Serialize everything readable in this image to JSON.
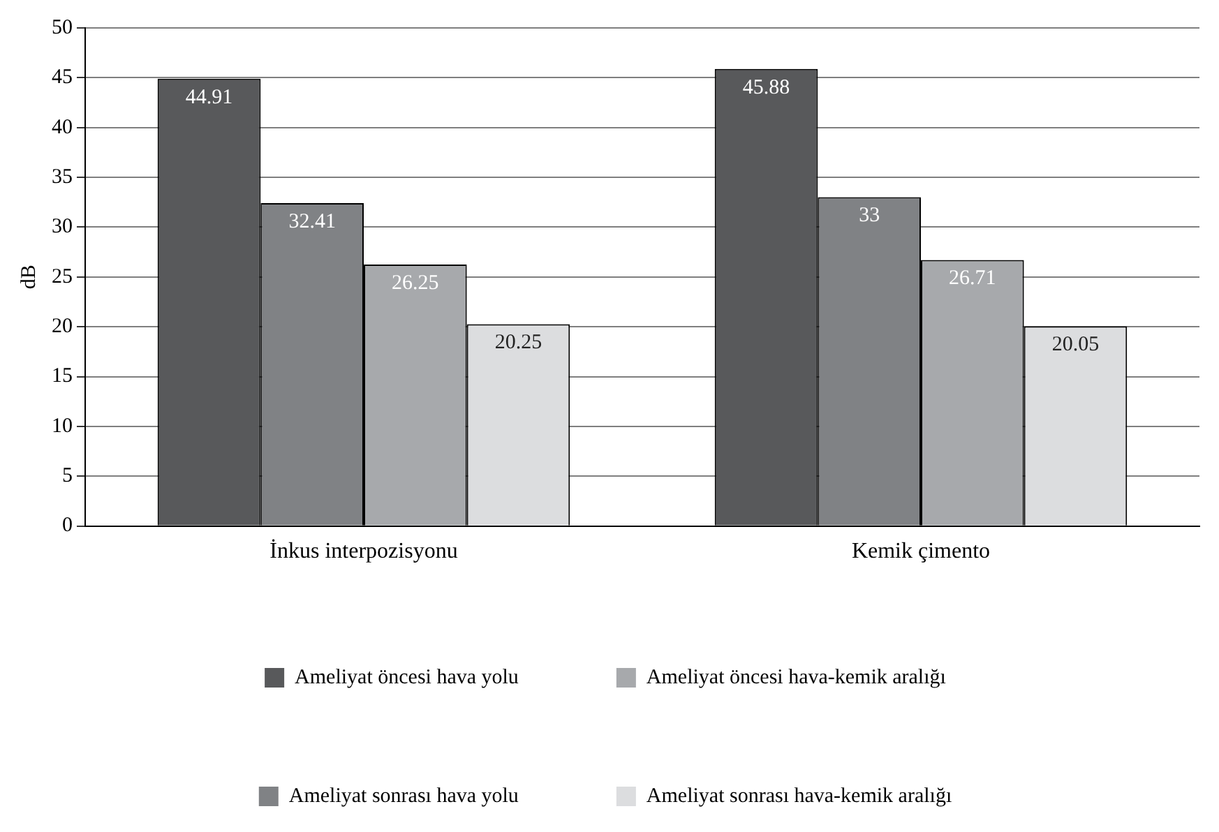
{
  "chart_data": {
    "type": "bar",
    "ylabel": "dB",
    "categories": [
      "İnkus interpozisyonu",
      "Kemik çimento"
    ],
    "series": [
      {
        "name": "Ameliyat öncesi hava yolu",
        "color": "#58595b",
        "values": [
          44.91,
          45.88
        ]
      },
      {
        "name": "Ameliyat sonrası hava yolu",
        "color": "#808285",
        "values": [
          32.41,
          33
        ]
      },
      {
        "name": "Ameliyat öncesi hava-kemik aralığı",
        "color": "#a7a9ac",
        "values": [
          26.25,
          26.71
        ]
      },
      {
        "name": "Ameliyat sonrası hava-kemik aralığı",
        "color": "#dcdddf",
        "values": [
          20.25,
          20.05
        ]
      }
    ],
    "ylim": [
      0,
      50
    ],
    "yticks": [
      0,
      5,
      10,
      15,
      20,
      25,
      30,
      35,
      40,
      45,
      50
    ],
    "grid": "y",
    "legend": "bottom",
    "data_labels": true
  }
}
